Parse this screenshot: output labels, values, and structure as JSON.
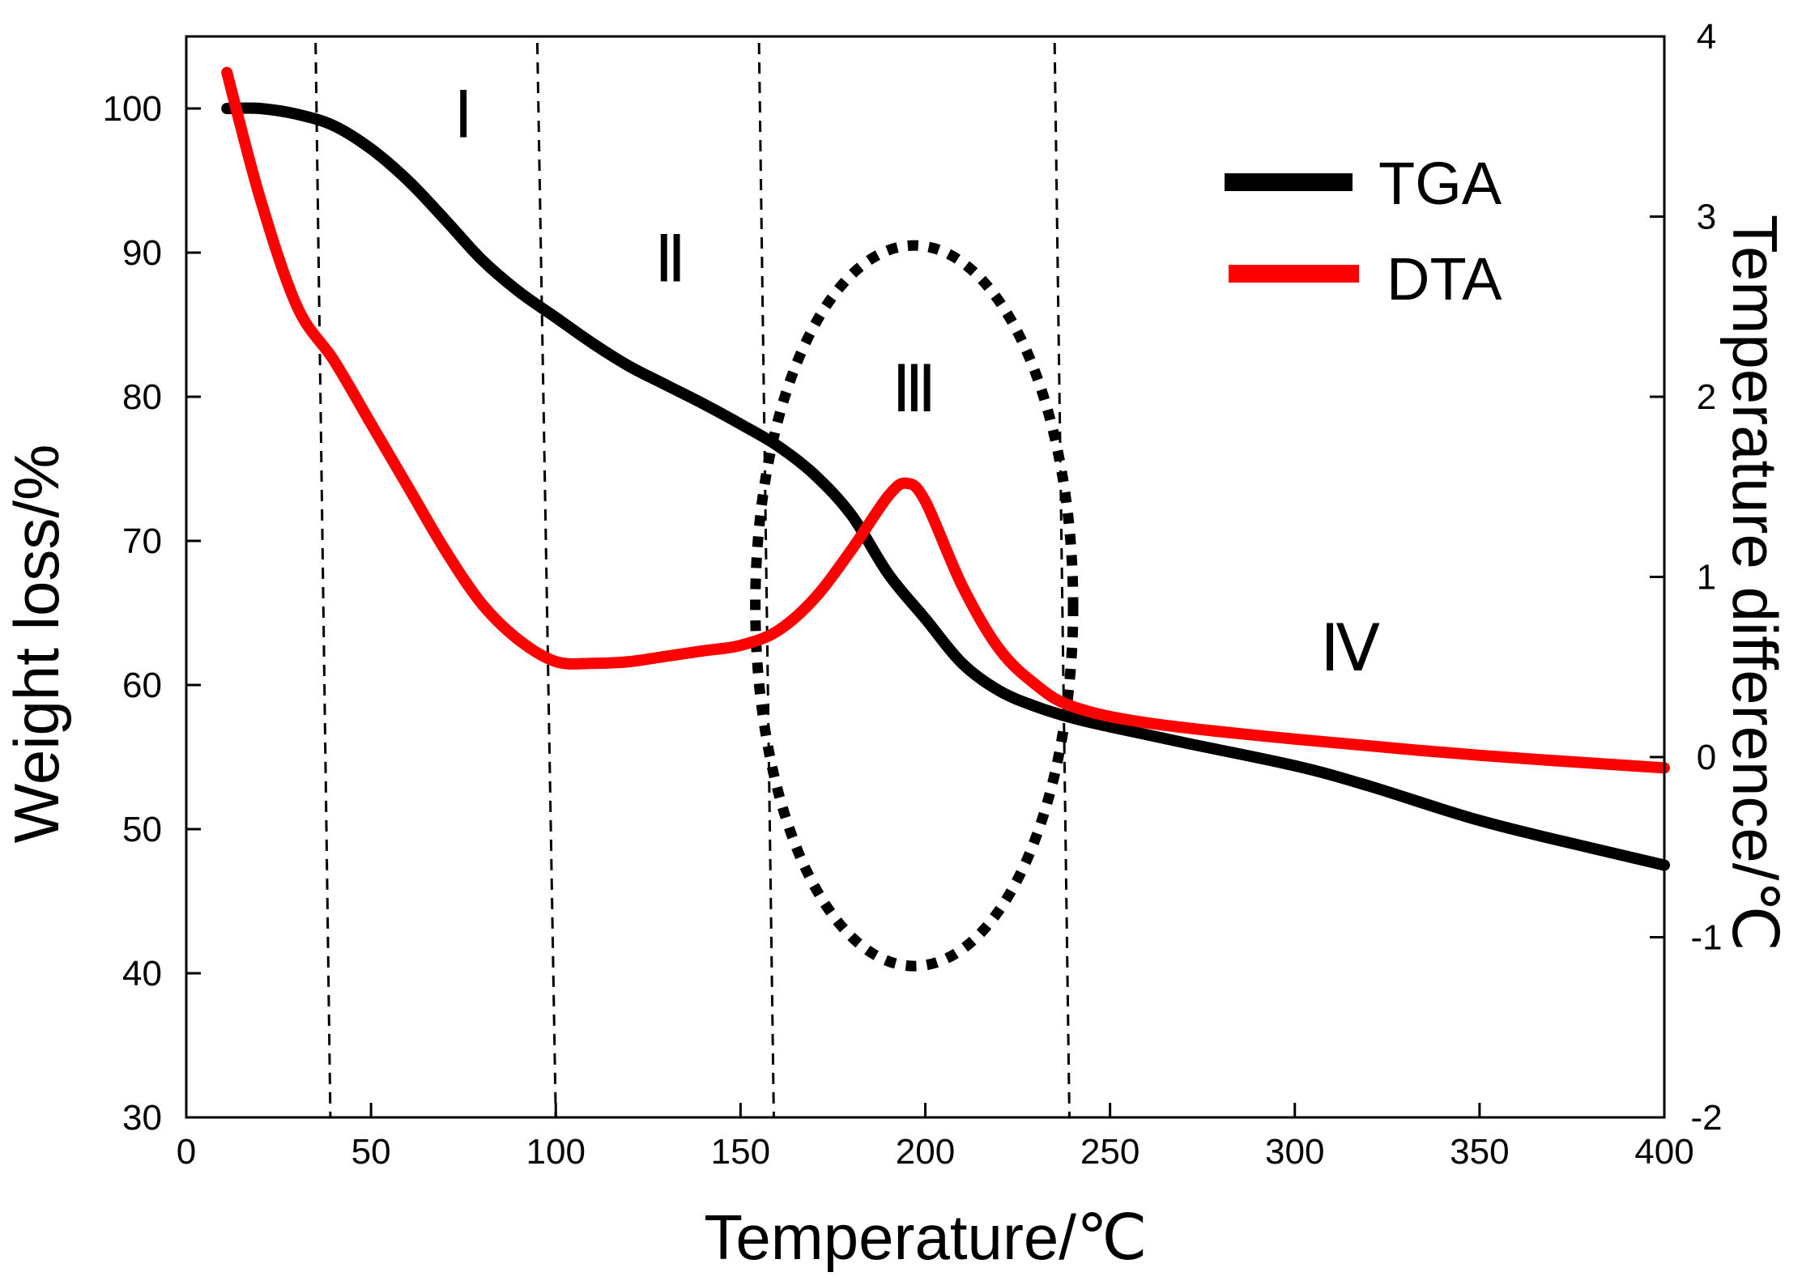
{
  "chart_data": {
    "type": "line",
    "title": "",
    "xlabel": "Temperature/℃",
    "ylabel_left": "Weight loss/%",
    "ylabel_right": "Temperature difference/℃",
    "xlim": [
      0,
      400
    ],
    "ylim_left": [
      30,
      105
    ],
    "ylim_right": [
      -2,
      4
    ],
    "x_ticks": [
      0,
      50,
      100,
      150,
      200,
      250,
      300,
      350,
      400
    ],
    "y_left_ticks": [
      30,
      40,
      50,
      60,
      70,
      80,
      90,
      100
    ],
    "y_right_ticks": [
      -2,
      -1,
      0,
      1,
      2,
      3,
      4
    ],
    "grid": false,
    "legend_position": "top-right",
    "series": [
      {
        "name": "TGA",
        "axis": "left",
        "color": "#000000",
        "points": [
          [
            11,
            100
          ],
          [
            20,
            100
          ],
          [
            30,
            99.6
          ],
          [
            40,
            98.8
          ],
          [
            50,
            97.2
          ],
          [
            60,
            95
          ],
          [
            70,
            92.3
          ],
          [
            80,
            89.5
          ],
          [
            90,
            87.3
          ],
          [
            100,
            85.5
          ],
          [
            110,
            83.7
          ],
          [
            120,
            82.1
          ],
          [
            130,
            80.8
          ],
          [
            140,
            79.5
          ],
          [
            150,
            78.1
          ],
          [
            160,
            76.6
          ],
          [
            170,
            74.6
          ],
          [
            180,
            71.8
          ],
          [
            190,
            67.7
          ],
          [
            200,
            64.6
          ],
          [
            210,
            61.5
          ],
          [
            220,
            59.6
          ],
          [
            230,
            58.5
          ],
          [
            240,
            57.7
          ],
          [
            250,
            57.1
          ],
          [
            270,
            56
          ],
          [
            300,
            54.4
          ],
          [
            320,
            53
          ],
          [
            350,
            50.6
          ],
          [
            380,
            48.7
          ],
          [
            400,
            47.5
          ]
        ]
      },
      {
        "name": "DTA",
        "axis": "right",
        "color": "#ff0000",
        "points": [
          [
            11,
            3.8
          ],
          [
            20,
            3.1
          ],
          [
            30,
            2.5
          ],
          [
            40,
            2.2
          ],
          [
            50,
            1.85
          ],
          [
            60,
            1.5
          ],
          [
            70,
            1.15
          ],
          [
            80,
            0.85
          ],
          [
            90,
            0.65
          ],
          [
            100,
            0.53
          ],
          [
            110,
            0.52
          ],
          [
            120,
            0.53
          ],
          [
            130,
            0.56
          ],
          [
            140,
            0.59
          ],
          [
            150,
            0.62
          ],
          [
            160,
            0.7
          ],
          [
            170,
            0.88
          ],
          [
            180,
            1.15
          ],
          [
            190,
            1.45
          ],
          [
            195,
            1.52
          ],
          [
            200,
            1.42
          ],
          [
            210,
            0.95
          ],
          [
            220,
            0.6
          ],
          [
            230,
            0.4
          ],
          [
            240,
            0.28
          ],
          [
            260,
            0.19
          ],
          [
            300,
            0.1
          ],
          [
            350,
            0.01
          ],
          [
            400,
            -0.06
          ]
        ]
      }
    ],
    "region_boundaries": [
      [
        35,
        39
      ],
      [
        95,
        100
      ],
      [
        155,
        159
      ],
      [
        235,
        239
      ]
    ],
    "region_labels": [
      {
        "text": "Ⅰ",
        "x": 75,
        "y": 98
      },
      {
        "text": "Ⅱ",
        "x": 131,
        "y": 88
      },
      {
        "text": "Ⅲ",
        "x": 197,
        "y": 79
      },
      {
        "text": "Ⅳ",
        "x": 315,
        "y": 61
      }
    ],
    "highlight_ellipse": {
      "cx": 197,
      "cy": 65.5,
      "rx": 43,
      "ry": 25
    }
  }
}
